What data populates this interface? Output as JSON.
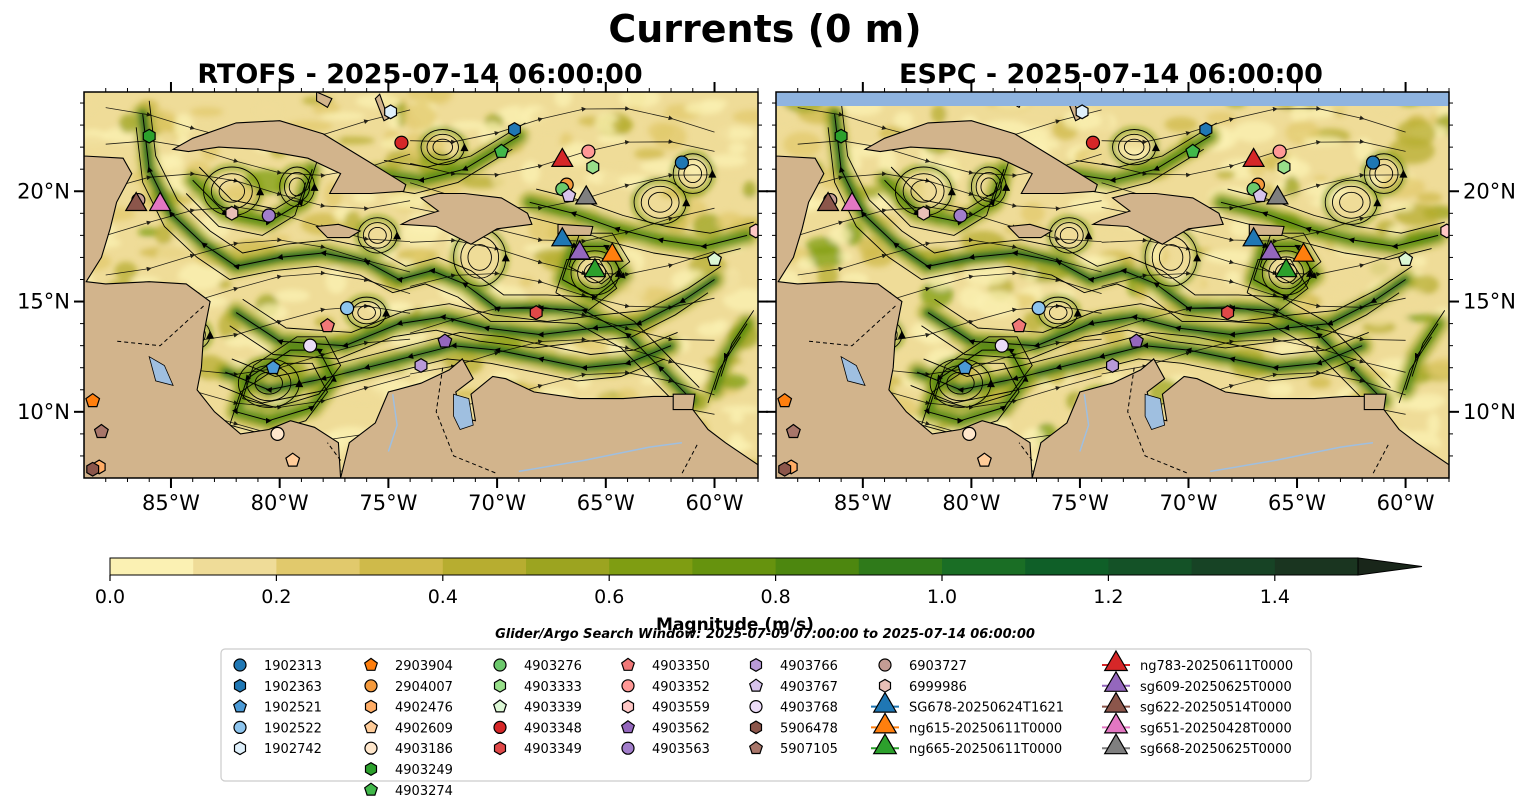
{
  "figure": {
    "title": "Currents (0 m)",
    "search_window": "Glider/Argo Search Window: 2025-07-09 07:00:00 to 2025-07-14 06:00:00"
  },
  "panels": [
    {
      "title": "RTOFS - 2025-07-14 06:00:00"
    },
    {
      "title": "ESPC - 2025-07-14 06:00:00"
    }
  ],
  "axes": {
    "lon_range": [
      -89,
      -58
    ],
    "lat_range": [
      7,
      24.5
    ],
    "x_ticks": [
      {
        "value": -85,
        "label": "85°W"
      },
      {
        "value": -80,
        "label": "80°W"
      },
      {
        "value": -75,
        "label": "75°W"
      },
      {
        "value": -70,
        "label": "70°W"
      },
      {
        "value": -65,
        "label": "65°W"
      },
      {
        "value": -60,
        "label": "60°W"
      }
    ],
    "y_ticks": [
      {
        "value": 10,
        "label": "10°N"
      },
      {
        "value": 15,
        "label": "15°N"
      },
      {
        "value": 20,
        "label": "20°N"
      }
    ]
  },
  "colorbar": {
    "label": "Magnitude (m/s)",
    "ticks": [
      {
        "value": 0.0,
        "label": "0.0"
      },
      {
        "value": 0.2,
        "label": "0.2"
      },
      {
        "value": 0.4,
        "label": "0.4"
      },
      {
        "value": 0.6,
        "label": "0.6"
      },
      {
        "value": 0.8,
        "label": "0.8"
      },
      {
        "value": 1.0,
        "label": "1.0"
      },
      {
        "value": 1.2,
        "label": "1.2"
      },
      {
        "value": 1.4,
        "label": "1.4"
      }
    ],
    "range": [
      0,
      1.5
    ],
    "extend": "max",
    "colors": [
      "#fbf1b3",
      "#efdc98",
      "#e1c96c",
      "#cfba4a",
      "#b7ad30",
      "#9ca420",
      "#7f9d12",
      "#66930e",
      "#4d870f",
      "#2f7a1a",
      "#1a6e25",
      "#0f5f28",
      "#145227",
      "#174325",
      "#1a3520",
      "#19261a"
    ]
  },
  "colors": {
    "land": "#d2b48c",
    "lake": "#9fbfe0",
    "no_data": "#8fb4e0"
  },
  "legend": {
    "position": "below",
    "entries": [
      {
        "label": "1902313",
        "marker": "circle",
        "color": "#1f77b4"
      },
      {
        "label": "1902363",
        "marker": "hexagon",
        "color": "#1f77b4"
      },
      {
        "label": "1902521",
        "marker": "pentagon",
        "color": "#4b9ad6"
      },
      {
        "label": "1902522",
        "marker": "circle",
        "color": "#8ec5ee"
      },
      {
        "label": "1902742",
        "marker": "hexagon",
        "color": "#dff0fb"
      },
      {
        "label": "2903904",
        "marker": "pentagon",
        "color": "#ff7f0e"
      },
      {
        "label": "2904007",
        "marker": "circle",
        "color": "#f59a3c"
      },
      {
        "label": "4902476",
        "marker": "hexagon",
        "color": "#ffad66"
      },
      {
        "label": "4902609",
        "marker": "pentagon",
        "color": "#ffcc99"
      },
      {
        "label": "4903186",
        "marker": "circle",
        "color": "#ffe7cc"
      },
      {
        "label": "4903249",
        "marker": "hexagon",
        "color": "#2ca02c"
      },
      {
        "label": "4903274",
        "marker": "pentagon",
        "color": "#41b84a"
      },
      {
        "label": "4903276",
        "marker": "circle",
        "color": "#6cc96c"
      },
      {
        "label": "4903333",
        "marker": "hexagon",
        "color": "#98df8a"
      },
      {
        "label": "4903339",
        "marker": "pentagon",
        "color": "#dcf7d5"
      },
      {
        "label": "4903348",
        "marker": "circle",
        "color": "#d62728"
      },
      {
        "label": "4903349",
        "marker": "hexagon",
        "color": "#e04848"
      },
      {
        "label": "4903350",
        "marker": "pentagon",
        "color": "#f07878"
      },
      {
        "label": "4903352",
        "marker": "circle",
        "color": "#ff9896"
      },
      {
        "label": "4903559",
        "marker": "hexagon",
        "color": "#ffc8c6"
      },
      {
        "label": "4903562",
        "marker": "pentagon",
        "color": "#9467bd"
      },
      {
        "label": "4903563",
        "marker": "circle",
        "color": "#a27ecb"
      },
      {
        "label": "4903766",
        "marker": "hexagon",
        "color": "#b99ad8"
      },
      {
        "label": "4903767",
        "marker": "pentagon",
        "color": "#d7c4ec"
      },
      {
        "label": "4903768",
        "marker": "circle",
        "color": "#ecdcf8"
      },
      {
        "label": "5906478",
        "marker": "hexagon",
        "color": "#8c564b"
      },
      {
        "label": "5907105",
        "marker": "pentagon",
        "color": "#a8766a"
      },
      {
        "label": "6903727",
        "marker": "circle",
        "color": "#c49c94"
      },
      {
        "label": "6999986",
        "marker": "hexagon",
        "color": "#e8bfb6"
      },
      {
        "label": "SG678-20250624T1621",
        "marker": "triangle",
        "color": "#1f77b4"
      },
      {
        "label": "ng615-20250611T0000",
        "marker": "triangle",
        "color": "#ff7f0e"
      },
      {
        "label": "ng665-20250611T0000",
        "marker": "triangle",
        "color": "#2ca02c"
      },
      {
        "label": "ng783-20250611T0000",
        "marker": "triangle",
        "color": "#d62728"
      },
      {
        "label": "sg609-20250625T0000",
        "marker": "triangle",
        "color": "#9467bd"
      },
      {
        "label": "sg622-20250514T0000",
        "marker": "triangle",
        "color": "#8c564b"
      },
      {
        "label": "sg651-20250428T0000",
        "marker": "triangle",
        "color": "#e377c2"
      },
      {
        "label": "sg668-20250625T0000",
        "marker": "triangle",
        "color": "#7f7f7f"
      }
    ]
  },
  "argo_floats": [
    {
      "id": "1902313",
      "lon": -61.5,
      "lat": 21.3
    },
    {
      "id": "1902363",
      "lon": -69.2,
      "lat": 22.8
    },
    {
      "id": "1902521",
      "lon": -80.3,
      "lat": 12.0
    },
    {
      "id": "1902522",
      "lon": -76.9,
      "lat": 14.7
    },
    {
      "id": "1902742",
      "lon": -74.9,
      "lat": 23.6
    },
    {
      "id": "2903904",
      "lon": -88.6,
      "lat": 10.5
    },
    {
      "id": "2904007",
      "lon": -66.8,
      "lat": 20.3
    },
    {
      "id": "4902476",
      "lon": -88.3,
      "lat": 7.5
    },
    {
      "id": "4902609",
      "lon": -79.4,
      "lat": 7.8
    },
    {
      "id": "4903186",
      "lon": -80.1,
      "lat": 9.0
    },
    {
      "id": "4903249",
      "lon": -86.0,
      "lat": 22.5
    },
    {
      "id": "4903274",
      "lon": -69.8,
      "lat": 21.8
    },
    {
      "id": "4903276",
      "lon": -67.0,
      "lat": 20.1
    },
    {
      "id": "4903333",
      "lon": -65.6,
      "lat": 21.1
    },
    {
      "id": "4903339",
      "lon": -60.0,
      "lat": 16.9
    },
    {
      "id": "4903348",
      "lon": -74.4,
      "lat": 22.2
    },
    {
      "id": "4903349",
      "lon": -68.2,
      "lat": 14.5
    },
    {
      "id": "4903350",
      "lon": -77.8,
      "lat": 13.9
    },
    {
      "id": "4903352",
      "lon": -65.8,
      "lat": 21.8
    },
    {
      "id": "4903559",
      "lon": -58.1,
      "lat": 18.2
    },
    {
      "id": "4903562",
      "lon": -72.4,
      "lat": 13.2
    },
    {
      "id": "4903563",
      "lon": -80.5,
      "lat": 18.9
    },
    {
      "id": "4903766",
      "lon": -73.5,
      "lat": 12.1
    },
    {
      "id": "4903767",
      "lon": -66.7,
      "lat": 19.8
    },
    {
      "id": "4903768",
      "lon": -78.6,
      "lat": 13.0
    },
    {
      "id": "5906478",
      "lon": -88.6,
      "lat": 7.4
    },
    {
      "id": "5907105",
      "lon": -88.2,
      "lat": 9.1
    },
    {
      "id": "6903727",
      "lon": -86.5,
      "lat": 19.6
    },
    {
      "id": "6999986",
      "lon": -82.2,
      "lat": 19.0
    }
  ],
  "gliders": [
    {
      "id": "SG678-20250624T1621",
      "lon": -67.0,
      "lat": 17.8
    },
    {
      "id": "ng615-20250611T0000",
      "lon": -64.7,
      "lat": 17.1
    },
    {
      "id": "ng665-20250611T0000",
      "lon": -65.5,
      "lat": 16.4
    },
    {
      "id": "ng783-20250611T0000",
      "lon": -67.0,
      "lat": 21.4
    },
    {
      "id": "sg609-20250625T0000",
      "lon": -66.2,
      "lat": 17.2
    },
    {
      "id": "sg622-20250514T0000",
      "lon": -86.6,
      "lat": 19.4
    },
    {
      "id": "sg651-20250428T0000",
      "lon": -85.5,
      "lat": 19.4
    },
    {
      "id": "sg668-20250625T0000",
      "lon": -65.9,
      "lat": 19.7
    }
  ]
}
